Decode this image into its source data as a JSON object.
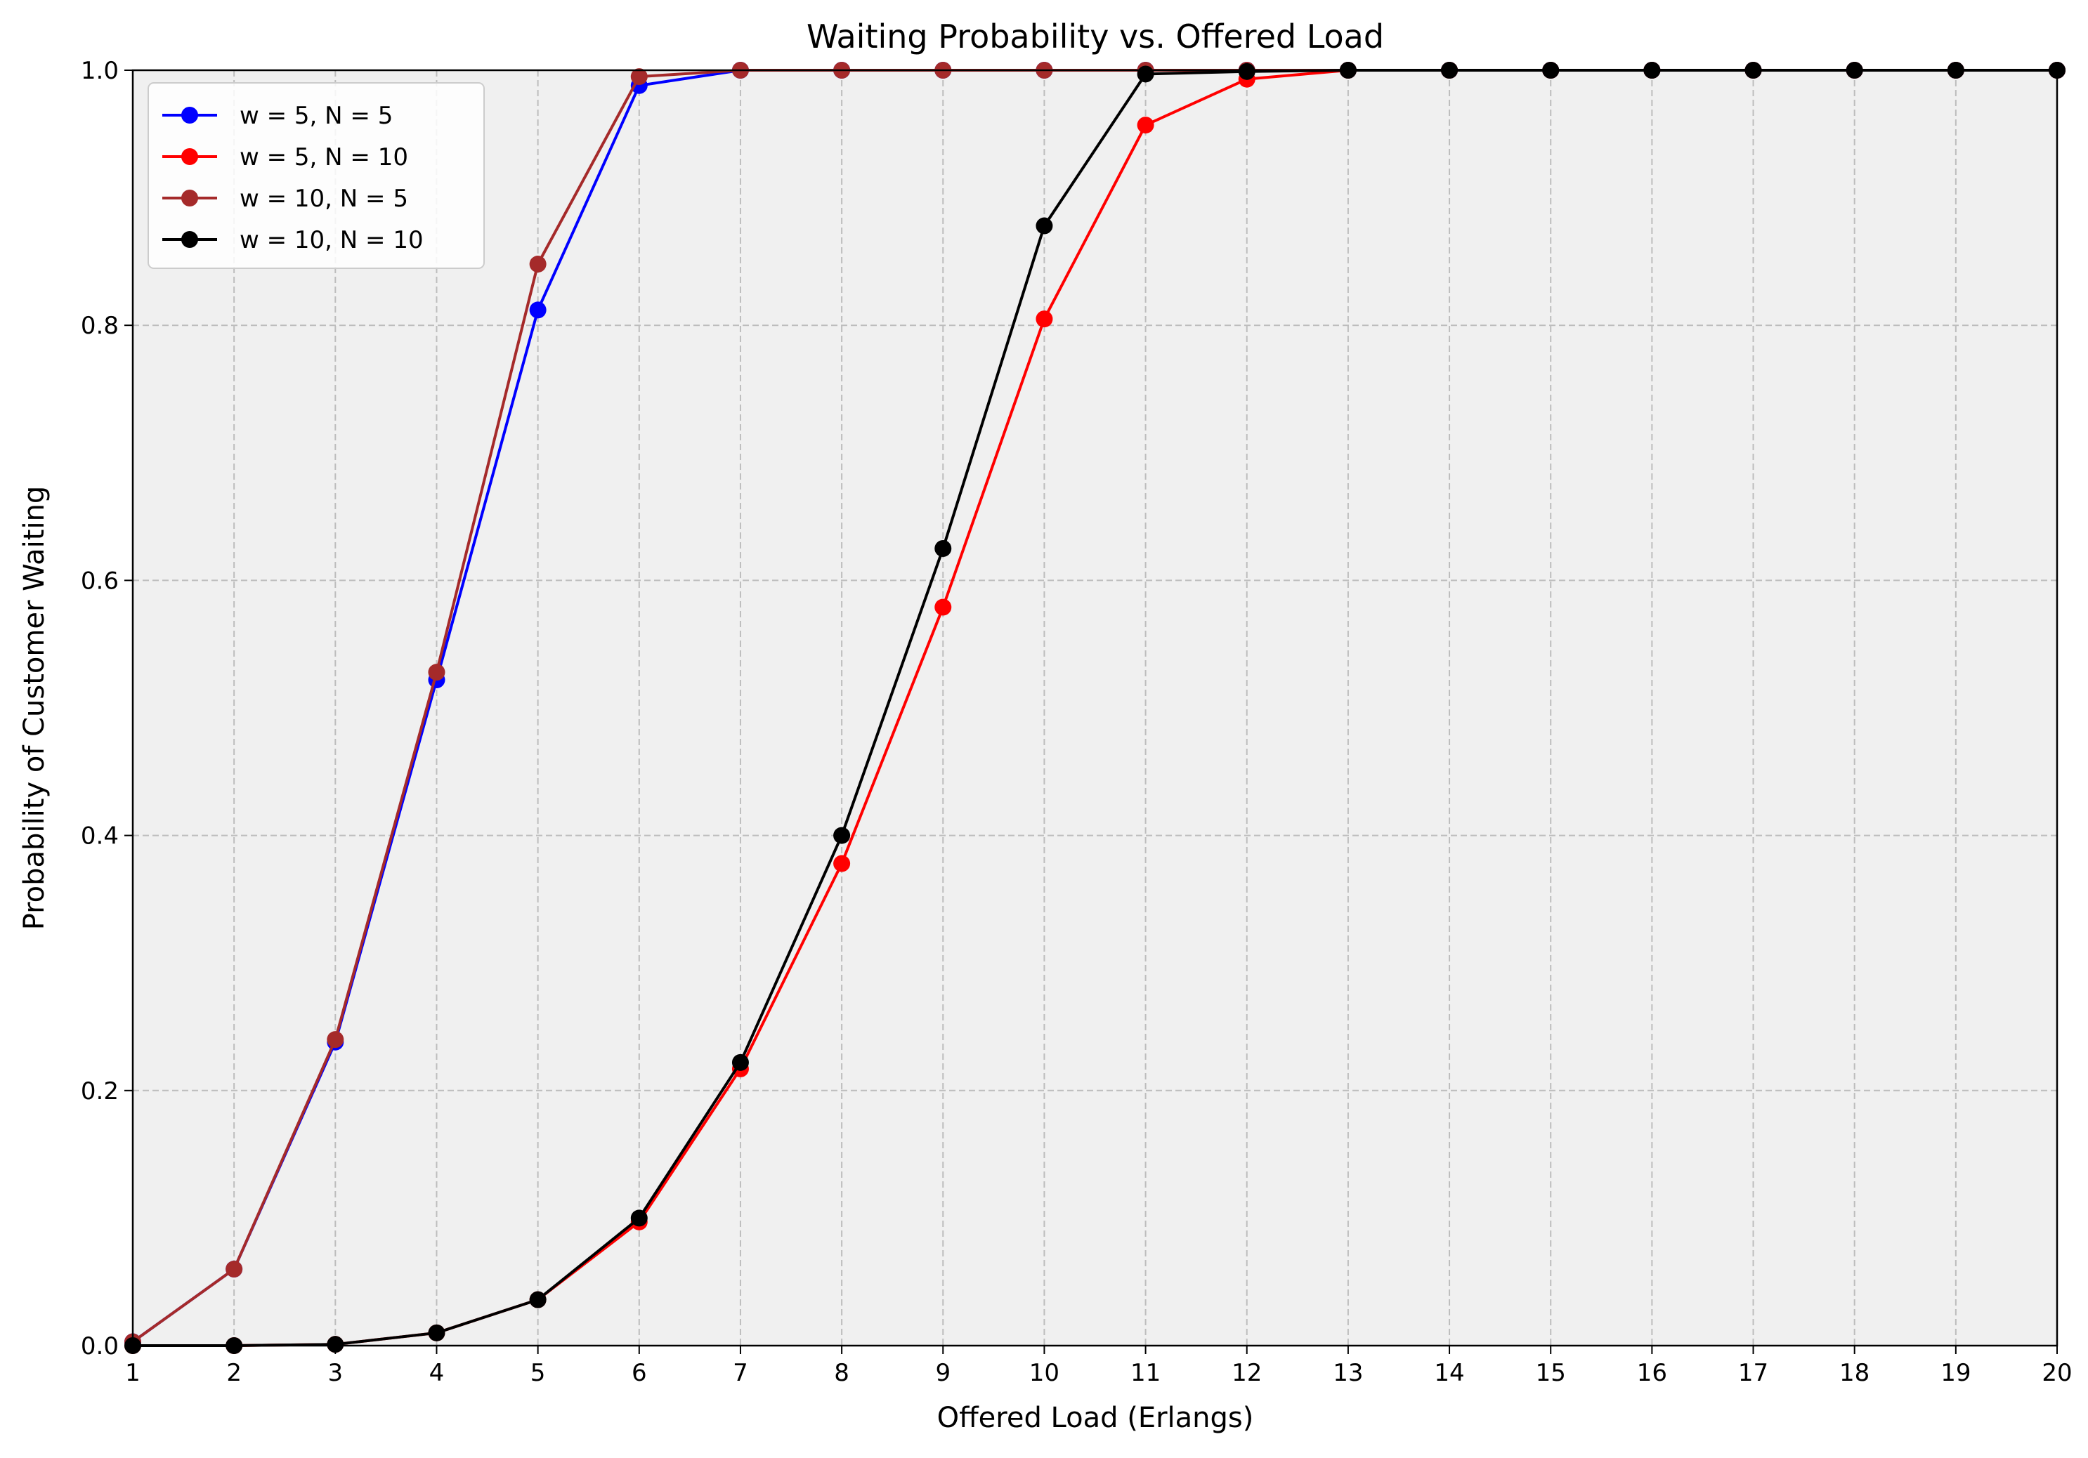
{
  "chart_data": {
    "type": "line",
    "title": "Waiting Probability vs. Offered Load",
    "xlabel": "Offered Load (Erlangs)",
    "ylabel": "Probability of Customer Waiting",
    "xlim": [
      1,
      20
    ],
    "ylim": [
      0,
      1
    ],
    "xticks": [
      1,
      2,
      3,
      4,
      5,
      6,
      7,
      8,
      9,
      10,
      11,
      12,
      13,
      14,
      15,
      16,
      17,
      18,
      19,
      20
    ],
    "yticks": [
      0.0,
      0.2,
      0.4,
      0.6,
      0.8,
      1.0
    ],
    "ytick_labels": [
      "0.0",
      "0.2",
      "0.4",
      "0.6",
      "0.8",
      "1.0"
    ],
    "grid": true,
    "legend_position": "top-left",
    "x": [
      1,
      2,
      3,
      4,
      5,
      6,
      7,
      8,
      9,
      10,
      11,
      12,
      13,
      14,
      15,
      16,
      17,
      18,
      19,
      20
    ],
    "series": [
      {
        "name": "w = 5, N = 5",
        "color": "#0000ff",
        "values": [
          0.003,
          0.06,
          0.238,
          0.522,
          0.812,
          0.988,
          1.0,
          1.0,
          1.0,
          1.0,
          1.0,
          1.0,
          1.0,
          1.0,
          1.0,
          1.0,
          1.0,
          1.0,
          1.0,
          1.0
        ]
      },
      {
        "name": "w = 5, N = 10",
        "color": "#ff0000",
        "values": [
          0.0,
          0.0,
          0.001,
          0.01,
          0.036,
          0.097,
          0.217,
          0.378,
          0.579,
          0.805,
          0.957,
          0.993,
          1.0,
          1.0,
          1.0,
          1.0,
          1.0,
          1.0,
          1.0,
          1.0
        ]
      },
      {
        "name": "w = 10, N = 5",
        "color": "#a52a2a",
        "values": [
          0.003,
          0.06,
          0.24,
          0.528,
          0.848,
          0.995,
          1.0,
          1.0,
          1.0,
          1.0,
          1.0,
          1.0,
          1.0,
          1.0,
          1.0,
          1.0,
          1.0,
          1.0,
          1.0,
          1.0
        ]
      },
      {
        "name": "w = 10, N = 10",
        "color": "#000000",
        "values": [
          0.0,
          0.0,
          0.001,
          0.01,
          0.036,
          0.1,
          0.222,
          0.4,
          0.625,
          0.878,
          0.997,
          0.999,
          1.0,
          1.0,
          1.0,
          1.0,
          1.0,
          1.0,
          1.0,
          1.0
        ]
      }
    ],
    "plot_background": "#f0f0f0",
    "grid_color": "#bdbdbd"
  }
}
